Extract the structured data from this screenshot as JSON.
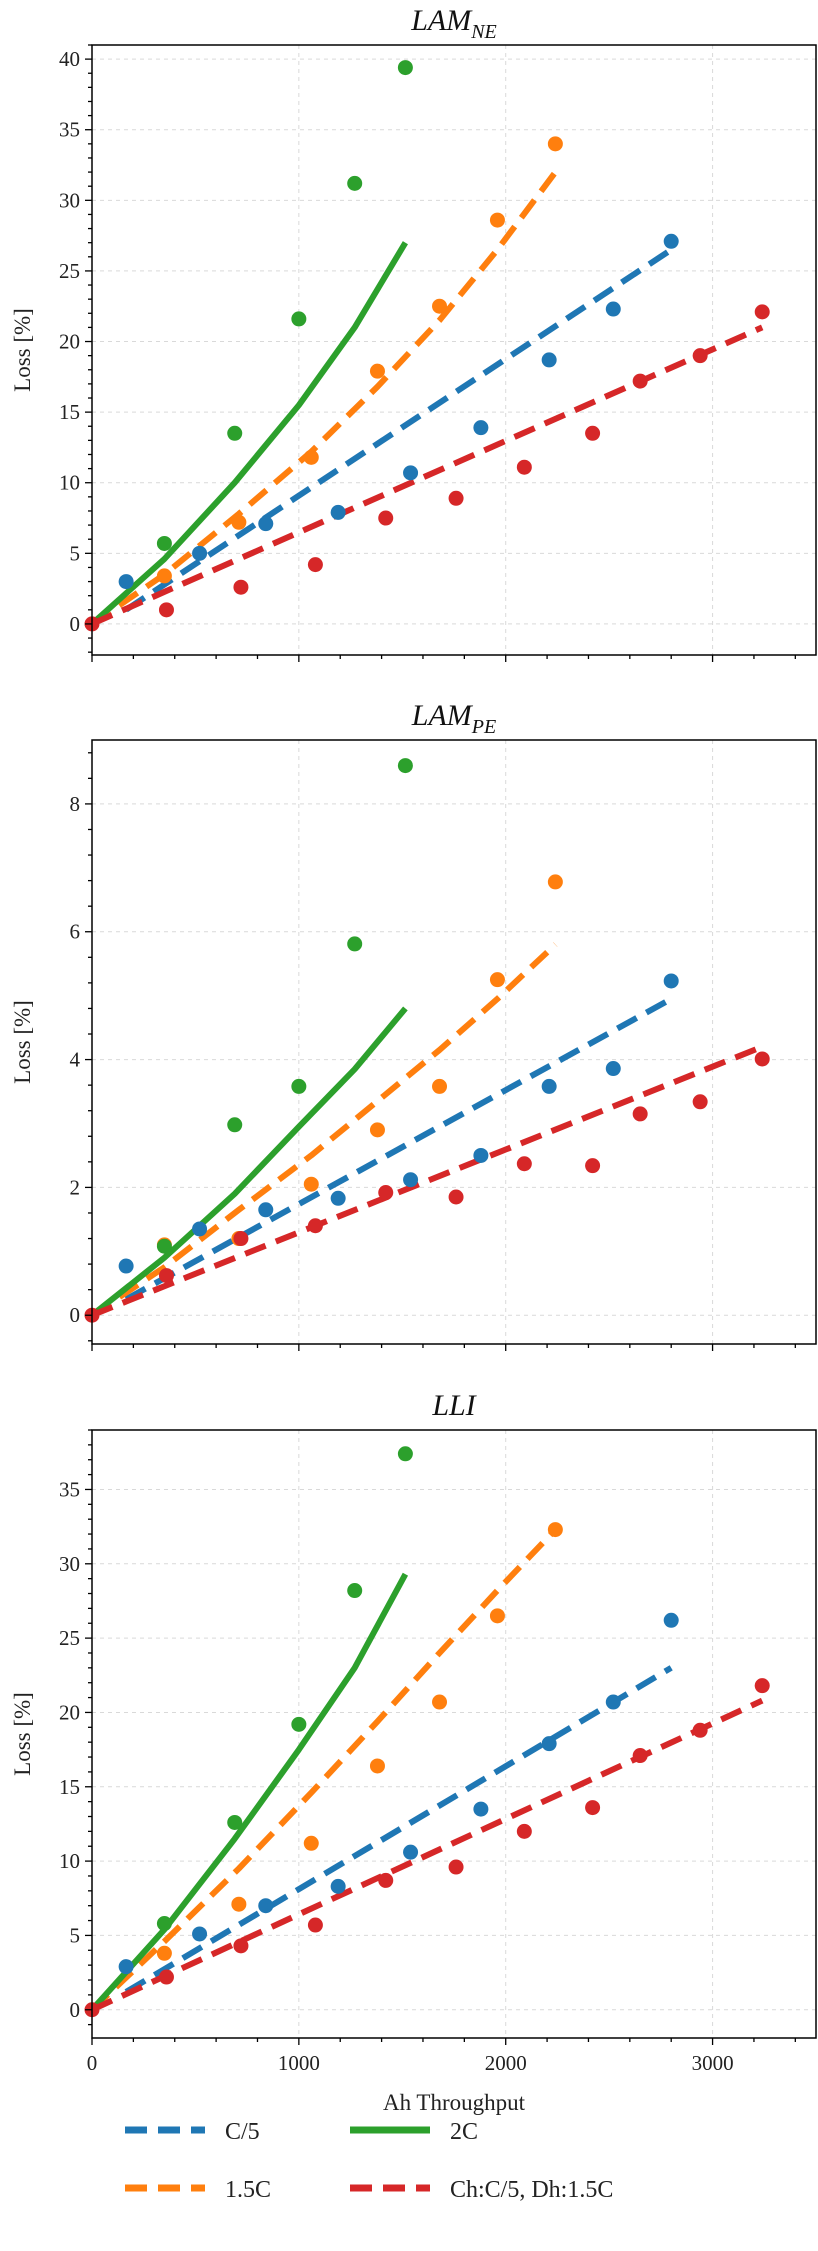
{
  "colors": {
    "C/5": "#1f77b4",
    "1.5C": "#ff7f0e",
    "2C": "#2ca02c",
    "Ch:C/5, Dh:1.5C": "#d62728"
  },
  "legend": {
    "items": [
      {
        "label": "C/5",
        "style": "dashed",
        "color": "#1f77b4"
      },
      {
        "label": "2C",
        "style": "solid",
        "color": "#2ca02c"
      },
      {
        "label": "1.5C",
        "style": "dashed",
        "color": "#ff7f0e"
      },
      {
        "label": "Ch:C/5, Dh:1.5C",
        "style": "dashed",
        "color": "#d62728"
      }
    ],
    "placement": "bottom"
  },
  "chart_data": [
    {
      "type": "scatter",
      "title_main": "LAM",
      "title_sub": "NE",
      "xlabel": "",
      "ylabel": "Loss [%]",
      "xlim": [
        0,
        3500
      ],
      "ylim": [
        -2.2,
        41
      ],
      "yticks": [
        0,
        5,
        10,
        15,
        20,
        25,
        30,
        35,
        40
      ],
      "xticks": [
        0,
        1000,
        2000,
        3000
      ],
      "show_xticklabels": false,
      "grid": true,
      "series": [
        {
          "name": "C/5",
          "color": "#1f77b4",
          "line_style": "dashed",
          "points_x": [
            165,
            520,
            840,
            1190,
            1540,
            1880,
            2210,
            2520,
            2800
          ],
          "points_y": [
            3.0,
            5.0,
            7.1,
            7.9,
            10.7,
            13.9,
            18.7,
            22.3,
            27.1
          ],
          "fit_x": [
            165,
            2800
          ],
          "fit_y": [
            1.0,
            26.5
          ]
        },
        {
          "name": "1.5C",
          "color": "#ff7f0e",
          "line_style": "dashed",
          "points_x": [
            350,
            710,
            1060,
            1380,
            1680,
            1960,
            2240
          ],
          "points_y": [
            3.4,
            7.2,
            11.8,
            17.9,
            22.5,
            28.6,
            34.0
          ],
          "fit_x": [
            0,
            350,
            710,
            1060,
            1380,
            1680,
            1960,
            2240
          ],
          "fit_y": [
            0,
            3.5,
            7.8,
            12.2,
            16.8,
            21.5,
            26.5,
            32.0
          ]
        },
        {
          "name": "2C",
          "color": "#2ca02c",
          "line_style": "solid",
          "points_x": [
            350,
            690,
            1000,
            1270,
            1515
          ],
          "points_y": [
            5.7,
            13.5,
            21.6,
            31.2,
            39.4
          ],
          "fit_x": [
            0,
            350,
            690,
            1000,
            1270,
            1515
          ],
          "fit_y": [
            0,
            4.6,
            10.0,
            15.5,
            21.0,
            27.0
          ]
        },
        {
          "name": "Ch:C/5, Dh:1.5C",
          "color": "#d62728",
          "line_style": "dashed",
          "points_x": [
            0,
            360,
            720,
            1080,
            1420,
            1760,
            2090,
            2420,
            2650,
            2940,
            3240
          ],
          "points_y": [
            0,
            1.0,
            2.6,
            4.2,
            7.5,
            8.9,
            11.1,
            13.5,
            17.2,
            19.0,
            22.1
          ],
          "fit_x": [
            0,
            3240
          ],
          "fit_y": [
            0,
            21.0
          ]
        }
      ]
    },
    {
      "type": "scatter",
      "title_main": "LAM",
      "title_sub": "PE",
      "xlabel": "",
      "ylabel": "Loss [%]",
      "xlim": [
        0,
        3500
      ],
      "ylim": [
        -0.45,
        9.0
      ],
      "yticks": [
        0,
        2,
        4,
        6,
        8
      ],
      "xticks": [
        0,
        1000,
        2000,
        3000
      ],
      "show_xticklabels": false,
      "grid": true,
      "series": [
        {
          "name": "C/5",
          "color": "#1f77b4",
          "line_style": "dashed",
          "points_x": [
            165,
            520,
            840,
            1190,
            1540,
            1880,
            2210,
            2520,
            2800
          ],
          "points_y": [
            0.77,
            1.35,
            1.65,
            1.83,
            2.12,
            2.5,
            3.58,
            3.86,
            5.23
          ],
          "fit_x": [
            165,
            2800
          ],
          "fit_y": [
            0.25,
            4.95
          ]
        },
        {
          "name": "1.5C",
          "color": "#ff7f0e",
          "line_style": "dashed",
          "points_x": [
            350,
            710,
            1060,
            1380,
            1680,
            1960,
            2240
          ],
          "points_y": [
            1.1,
            1.2,
            2.05,
            2.9,
            3.58,
            5.25,
            6.78
          ],
          "fit_x": [
            0,
            350,
            710,
            1060,
            1380,
            1680,
            1960,
            2240
          ],
          "fit_y": [
            0,
            0.75,
            1.65,
            2.5,
            3.35,
            4.15,
            4.95,
            5.8
          ]
        },
        {
          "name": "2C",
          "color": "#2ca02c",
          "line_style": "solid",
          "points_x": [
            350,
            690,
            1000,
            1270,
            1515
          ],
          "points_y": [
            1.08,
            2.98,
            3.58,
            5.81,
            8.6
          ],
          "fit_x": [
            0,
            350,
            690,
            1000,
            1270,
            1515
          ],
          "fit_y": [
            0,
            0.9,
            1.9,
            2.95,
            3.85,
            4.8
          ]
        },
        {
          "name": "Ch:C/5, Dh:1.5C",
          "color": "#d62728",
          "line_style": "dashed",
          "points_x": [
            0,
            360,
            720,
            1080,
            1420,
            1760,
            2090,
            2420,
            2650,
            2940,
            3240
          ],
          "points_y": [
            0,
            0.62,
            1.2,
            1.4,
            1.92,
            1.85,
            2.37,
            2.34,
            3.15,
            3.34,
            4.01
          ],
          "fit_x": [
            0,
            3240
          ],
          "fit_y": [
            0,
            4.2
          ]
        }
      ]
    },
    {
      "type": "scatter",
      "title_main": "LLI",
      "title_sub": "",
      "xlabel": "Ah Throughput",
      "ylabel": "Loss [%]",
      "xlim": [
        0,
        3500
      ],
      "ylim": [
        -1.9,
        39
      ],
      "yticks": [
        0,
        5,
        10,
        15,
        20,
        25,
        30,
        35
      ],
      "xticks": [
        0,
        1000,
        2000,
        3000
      ],
      "show_xticklabels": true,
      "grid": true,
      "series": [
        {
          "name": "C/5",
          "color": "#1f77b4",
          "line_style": "dashed",
          "points_x": [
            165,
            520,
            840,
            1190,
            1540,
            1880,
            2210,
            2520,
            2800
          ],
          "points_y": [
            2.9,
            5.1,
            7.0,
            8.3,
            10.6,
            13.5,
            17.9,
            20.7,
            26.2
          ],
          "fit_x": [
            165,
            2800
          ],
          "fit_y": [
            1.2,
            23.0
          ]
        },
        {
          "name": "1.5C",
          "color": "#ff7f0e",
          "line_style": "dashed",
          "points_x": [
            350,
            710,
            1060,
            1380,
            1680,
            1960,
            2240
          ],
          "points_y": [
            3.8,
            7.1,
            11.2,
            16.4,
            20.7,
            26.5,
            32.3
          ],
          "fit_x": [
            0,
            350,
            710,
            1060,
            1380,
            1680,
            1960,
            2240
          ],
          "fit_y": [
            0,
            4.6,
            9.5,
            14.6,
            19.4,
            24.0,
            28.2,
            32.3
          ]
        },
        {
          "name": "2C",
          "color": "#2ca02c",
          "line_style": "solid",
          "points_x": [
            350,
            690,
            1000,
            1270,
            1515
          ],
          "points_y": [
            5.8,
            12.6,
            19.2,
            28.2,
            37.4
          ],
          "fit_x": [
            0,
            350,
            690,
            1000,
            1270,
            1515
          ],
          "fit_y": [
            0,
            5.4,
            11.5,
            17.5,
            23.0,
            29.3
          ]
        },
        {
          "name": "Ch:C/5, Dh:1.5C",
          "color": "#d62728",
          "line_style": "dashed",
          "points_x": [
            0,
            360,
            720,
            1080,
            1420,
            1760,
            2090,
            2420,
            2650,
            2940,
            3240
          ],
          "points_y": [
            0,
            2.2,
            4.3,
            5.7,
            8.7,
            9.6,
            12.0,
            13.6,
            17.1,
            18.8,
            21.8
          ],
          "fit_x": [
            0,
            3240
          ],
          "fit_y": [
            0,
            20.8
          ]
        }
      ]
    }
  ]
}
